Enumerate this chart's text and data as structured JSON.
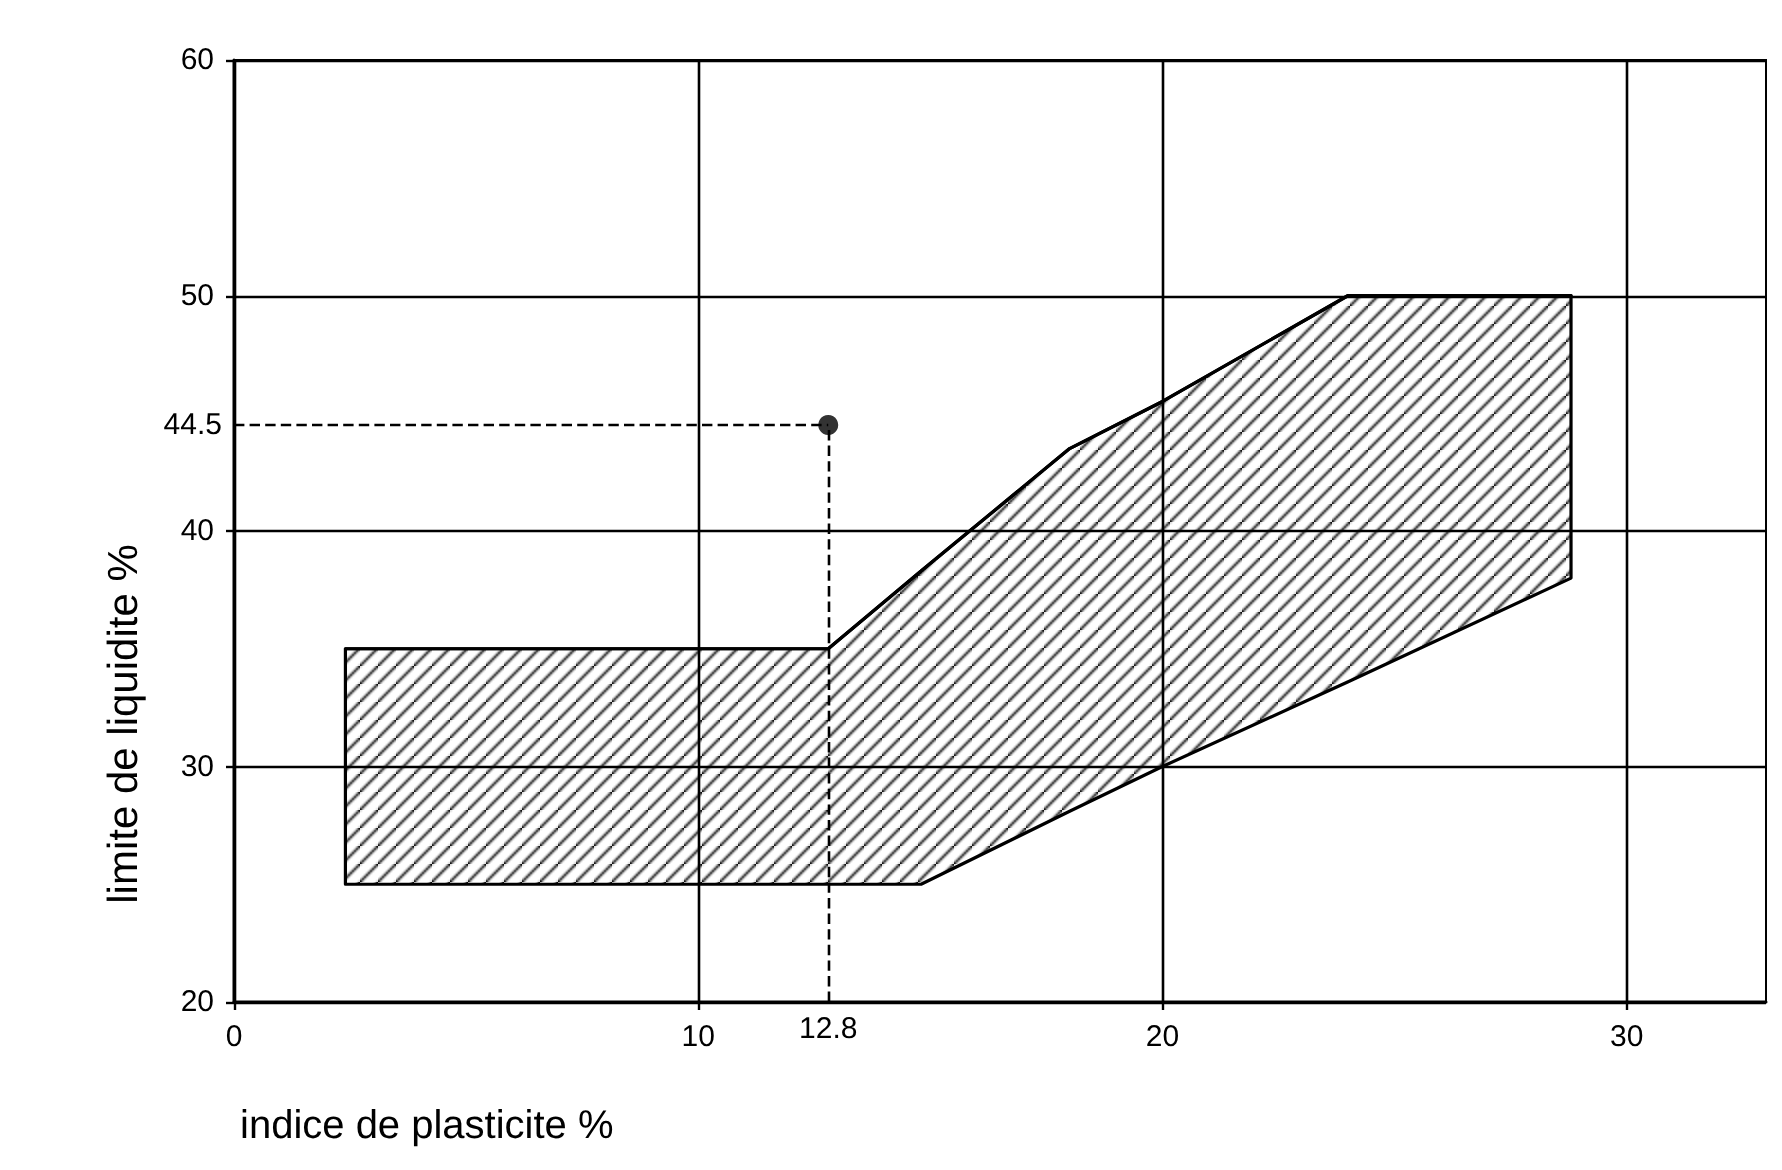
{
  "chart_data": {
    "type": "line",
    "xlabel": "indice de plasticite %",
    "ylabel": "limite de liquidite %",
    "xlim": [
      0,
      33
    ],
    "xticks": [
      0,
      10,
      20,
      30
    ],
    "ylim": [
      20,
      60
    ],
    "yticks": [
      20,
      30,
      40,
      50,
      60
    ],
    "grid": true,
    "series": [
      {
        "color": "#000000",
        "x": [
          2.4,
          12.8,
          14.8,
          18,
          20,
          24,
          28.8
        ],
        "values": [
          35,
          35,
          38.3,
          43.5,
          45.5,
          50,
          50
        ],
        "lower": [
          25,
          25,
          25,
          28.1,
          30,
          33.6,
          38
        ],
        "upper": [
          35,
          35,
          38.3,
          43.5,
          45.5,
          50,
          50
        ]
      },
      {
        "type": "scatter",
        "color": "#000000",
        "marker": "circle",
        "x": [
          12.8
        ],
        "values": [
          44.5
        ]
      }
    ],
    "ref_lines": [
      {
        "axis": "y",
        "value": 44.5,
        "label": "44.5",
        "line_style": "dashed"
      },
      {
        "axis": "x",
        "value": 12.8,
        "label": "12.8",
        "line_style": "dashed"
      }
    ]
  }
}
